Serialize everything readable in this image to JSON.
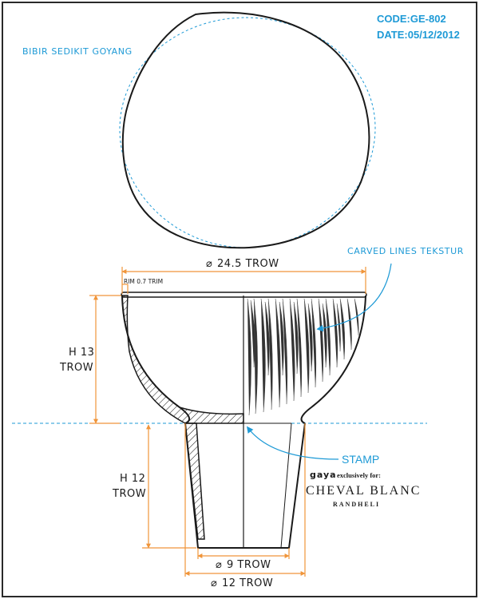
{
  "header": {
    "code": "CODE:GE-802",
    "date": "DATE:05/12/2012"
  },
  "notes": {
    "top_view": "BIBIR SEDIKIT GOYANG",
    "texture": "CARVED LINES TEKSTUR",
    "rim": "RIM 0.7 TRIM",
    "stamp": "STAMP"
  },
  "dimensions": {
    "top_diameter": "24.5 TROW",
    "bowl_height_h": "H 13",
    "bowl_height_unit": "TROW",
    "foot_height_h": "H 12",
    "foot_height_unit": "TROW",
    "base_inner_diameter": "9 TROW",
    "base_outer_diameter": "12 TROW"
  },
  "stamp_logo": {
    "brand_small": "gaya",
    "exclusive": "exclusively for:",
    "brand_main": "CHEVAL BLANC",
    "location": "RANDHELI"
  },
  "colors": {
    "dimension_lines": "#f0953a",
    "annotations": "#1e9ad6",
    "outline": "#1a1a1a",
    "frame": "#2a2a2a"
  }
}
